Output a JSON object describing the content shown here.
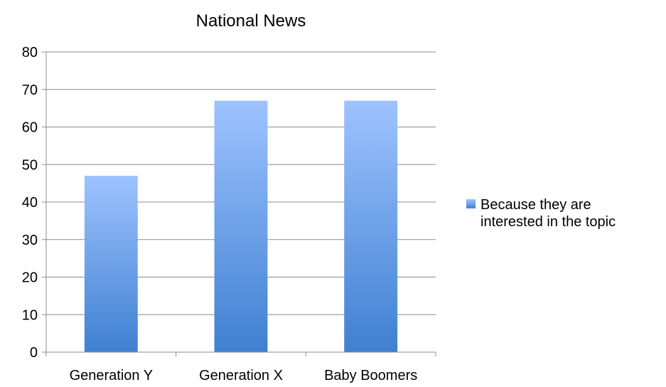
{
  "chart_data": {
    "type": "bar",
    "title": "National News",
    "xlabel": "",
    "ylabel": "",
    "categories": [
      "Generation Y",
      "Generation X",
      "Baby Boomers"
    ],
    "series": [
      {
        "name": "Because they are interested in the topic",
        "legend_lines": [
          "Because they are",
          "interested in the topic"
        ],
        "values": [
          47,
          67,
          67
        ]
      }
    ],
    "ylim": [
      0,
      80
    ],
    "yticks": [
      0,
      10,
      20,
      30,
      40,
      50,
      60,
      70,
      80
    ],
    "grid": true,
    "legend_position": "right",
    "colors": {
      "bar_top": "#9ec3ff",
      "bar_bottom": "#3f80d1",
      "grid": "#8c8c8c",
      "axis": "#8c8c8c"
    }
  }
}
